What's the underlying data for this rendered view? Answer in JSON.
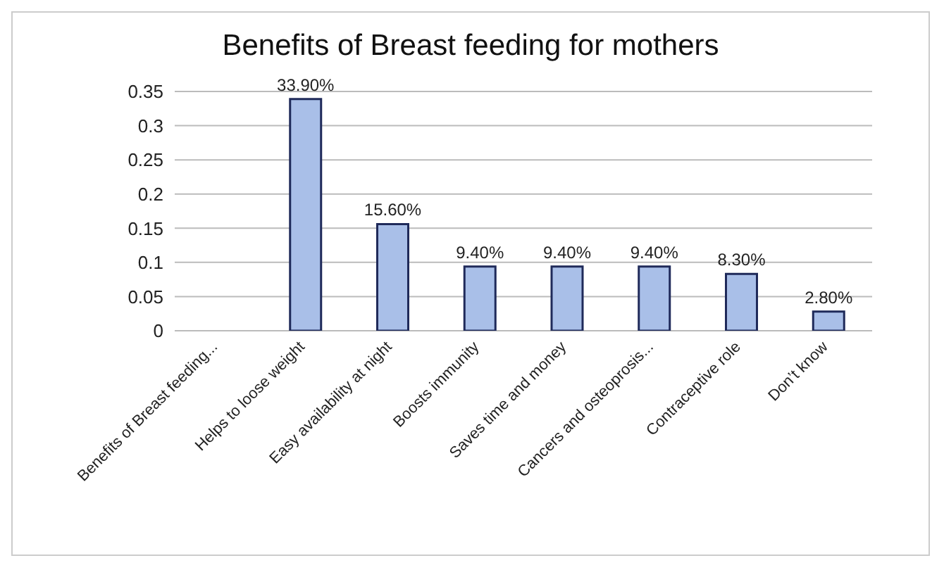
{
  "chart_data": {
    "type": "bar",
    "title": "Benefits of Breast feeding for mothers",
    "categories": [
      "Benefits of Breast feeding...",
      "Helps to loose weight",
      "Easy availability at night",
      "Boosts immunity",
      "Saves time and money",
      "Cancers and osteoprosis...",
      "Contraceptive role",
      "Don’t know"
    ],
    "values": [
      null,
      0.339,
      0.156,
      0.094,
      0.094,
      0.094,
      0.083,
      0.028
    ],
    "value_labels": [
      null,
      "33.90%",
      "15.60%",
      "9.40%",
      "9.40%",
      "9.40%",
      "8.30%",
      "2.80%"
    ],
    "color": "#a9bfe8",
    "ylim": [
      0,
      0.35
    ],
    "yticks": [
      0,
      0.05,
      0.1,
      0.15,
      0.2,
      0.25,
      0.3,
      0.35
    ],
    "grid": "y"
  }
}
